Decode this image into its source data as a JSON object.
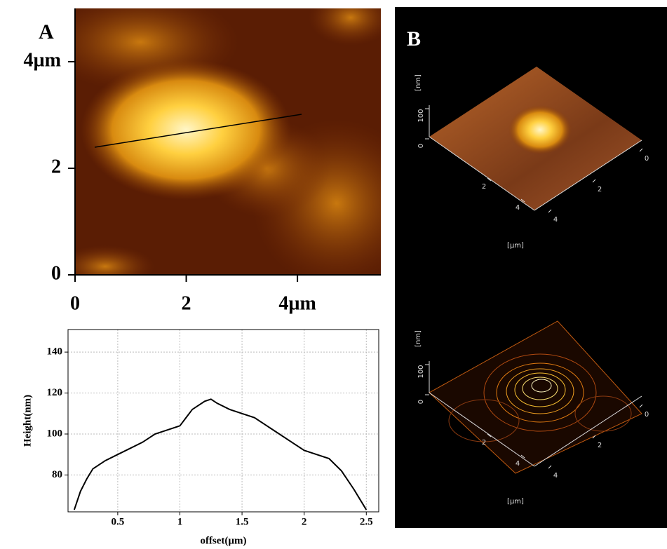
{
  "chart_data": [
    {
      "type": "image",
      "label": "A",
      "xlim": [
        0,
        5.5
      ],
      "ylim": [
        0,
        5.0
      ],
      "xticks": [
        0,
        2,
        {
          "value": 4,
          "label": "4µm"
        }
      ],
      "yticks": [
        0,
        2,
        {
          "value": 4,
          "label": "4µm"
        }
      ]
    },
    {
      "type": "line",
      "x_label": "offset(µm)",
      "y_label": "Height(nm)",
      "xlim": [
        0.1,
        2.6
      ],
      "ylim": [
        62,
        151
      ],
      "xticks": [
        0.5,
        1.0,
        1.5,
        2.0,
        2.5
      ],
      "yticks": [
        80,
        100,
        120,
        140
      ],
      "grid": true,
      "series": [
        {
          "color": "#000000",
          "x": [
            0.15,
            0.2,
            0.25,
            0.3,
            0.4,
            0.5,
            0.6,
            0.7,
            0.8,
            0.9,
            1.0,
            1.05,
            1.1,
            1.2,
            1.25,
            1.3,
            1.4,
            1.5,
            1.6,
            1.7,
            1.8,
            1.9,
            2.0,
            2.1,
            2.2,
            2.3,
            2.4,
            2.5
          ],
          "values": [
            63,
            72,
            78,
            83,
            87,
            90,
            93,
            96,
            100,
            102,
            104,
            108,
            112,
            116,
            117,
            115,
            112,
            110,
            108,
            104,
            100,
            96,
            92,
            90,
            88,
            82,
            73,
            63
          ]
        }
      ]
    },
    {
      "type": "surface",
      "label": "B",
      "z_label": "[nm]",
      "zticks": [
        0,
        100
      ],
      "x_label": "[µm]",
      "xticks": [
        2,
        4
      ],
      "yticks": [
        0,
        2,
        4
      ]
    },
    {
      "type": "contour",
      "z_label": "[nm]",
      "zticks": [
        0,
        100
      ],
      "x_label": "[µm]",
      "xticks": [
        2,
        4
      ],
      "yticks": [
        0,
        2,
        4
      ]
    }
  ]
}
